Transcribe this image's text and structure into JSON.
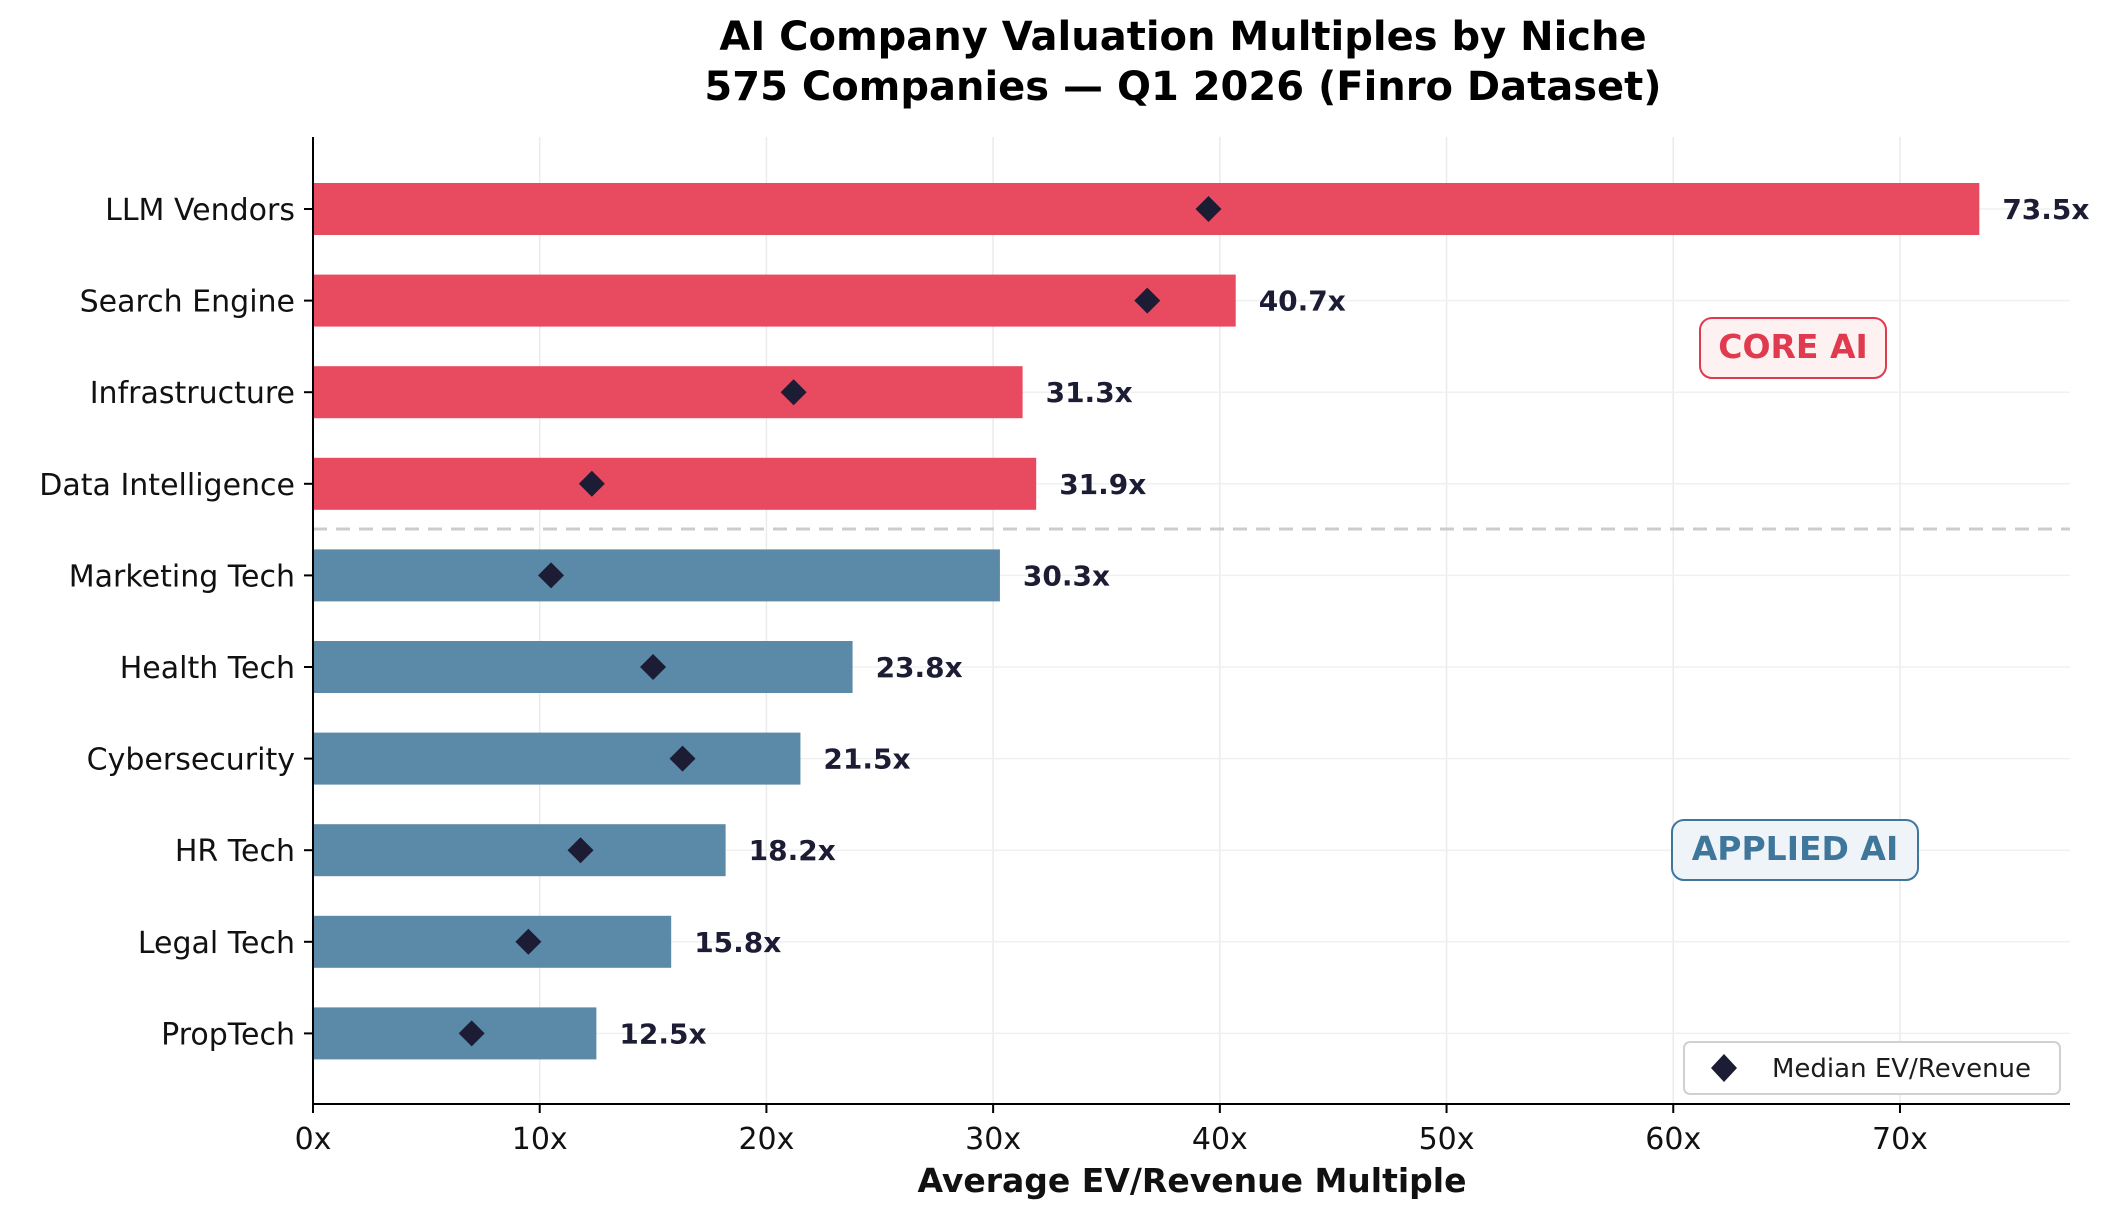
{
  "chart_data": {
    "type": "bar",
    "orientation": "horizontal",
    "title": "AI Company Valuation Multiples by Niche",
    "subtitle": "575 Companies — Q1 2026 (Finro Dataset)",
    "xlabel": "Average EV/Revenue Multiple",
    "ylabel": "",
    "xlim": [
      0,
      77.5
    ],
    "x_ticks": [
      0,
      10,
      20,
      30,
      40,
      50,
      60,
      70
    ],
    "x_tick_labels": [
      "0x",
      "10x",
      "20x",
      "30x",
      "40x",
      "50x",
      "60x",
      "70x"
    ],
    "grid": true,
    "categories": [
      "LLM Vendors",
      "Search Engine",
      "Infrastructure",
      "Data Intelligence",
      "Marketing Tech",
      "Health Tech",
      "Cybersecurity",
      "HR Tech",
      "Legal Tech",
      "PropTech"
    ],
    "groups": [
      "core",
      "core",
      "core",
      "core",
      "applied",
      "applied",
      "applied",
      "applied",
      "applied",
      "applied"
    ],
    "series": [
      {
        "name": "",
        "values": [
          73.5,
          40.7,
          31.3,
          31.9,
          30.3,
          23.8,
          21.5,
          18.2,
          15.8,
          12.5
        ],
        "value_labels": [
          "73.5x",
          "40.7x",
          "31.3x",
          "31.9x",
          "30.3x",
          "23.8x",
          "21.5x",
          "18.2x",
          "15.8x",
          "12.5x"
        ]
      },
      {
        "name": "Median EV/Revenue",
        "marker": "diamond",
        "values": [
          39.5,
          36.8,
          21.2,
          12.3,
          10.5,
          15.0,
          16.3,
          11.8,
          9.5,
          7.0
        ]
      }
    ],
    "group_labels": {
      "core": "CORE AI",
      "applied": "APPLIED AI"
    },
    "legend": {
      "position": "bottom-right",
      "entries": [
        "Median EV/Revenue"
      ]
    },
    "colors": {
      "core": "#e84a5f",
      "applied": "#5b8aa8",
      "marker": "#1c1c34",
      "core_label": "#e03a4e",
      "applied_label": "#3f769b"
    }
  }
}
